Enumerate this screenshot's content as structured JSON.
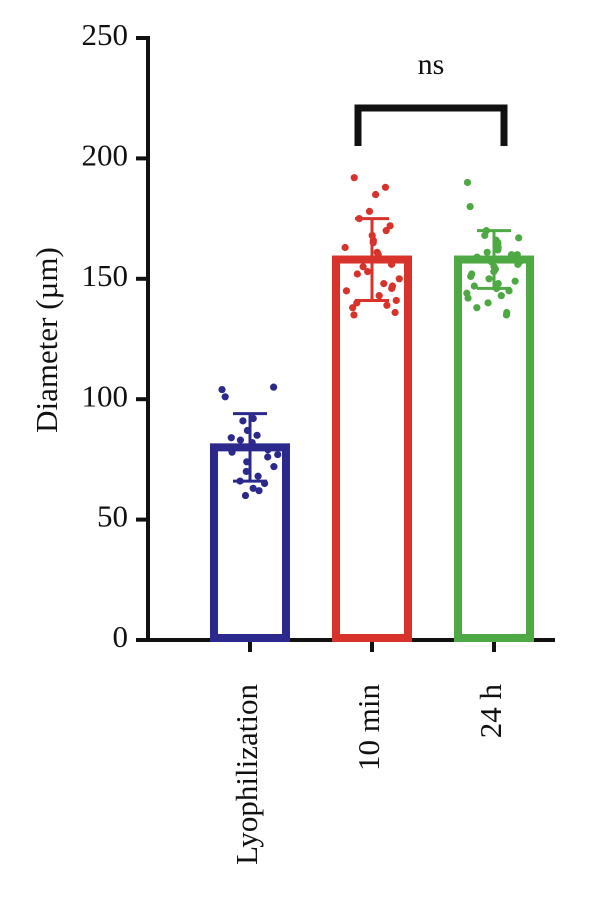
{
  "chart_data": {
    "type": "bar",
    "title": "",
    "xlabel": "",
    "ylabel": "Diameter (µm)",
    "ylim": [
      0,
      250
    ],
    "yticks": [
      0,
      50,
      100,
      150,
      200,
      250
    ],
    "categories": [
      "Lyophilization",
      "10 min",
      "24 h"
    ],
    "series": [
      {
        "values": [
          80,
          158,
          158
        ],
        "error": [
          14,
          17,
          12
        ],
        "colors": [
          "#2b2a8c",
          "#d7332b",
          "#4ea843"
        ],
        "points": [
          [
            104,
            105,
            101,
            92,
            91,
            87,
            85,
            84,
            83,
            82,
            80,
            79,
            78,
            77,
            76,
            74,
            72,
            70,
            68,
            66,
            65,
            63,
            62,
            60
          ],
          [
            192,
            188,
            185,
            178,
            175,
            172,
            170,
            168,
            166,
            165,
            163,
            161,
            160,
            158,
            156,
            155,
            153,
            152,
            150,
            148,
            147,
            146,
            145,
            143,
            141,
            140,
            139,
            138,
            136,
            135
          ],
          [
            190,
            180,
            170,
            168,
            167,
            166,
            165,
            164,
            163,
            162,
            161,
            160,
            160,
            159,
            158,
            158,
            157,
            157,
            156,
            155,
            154,
            153,
            152,
            151,
            150,
            149,
            148,
            147,
            146,
            145,
            144,
            143,
            142,
            140,
            138,
            136,
            135
          ]
        ]
      }
    ],
    "annotations": [
      {
        "text": "ns",
        "from_category": "10 min",
        "to_category": "24 h"
      }
    ]
  }
}
